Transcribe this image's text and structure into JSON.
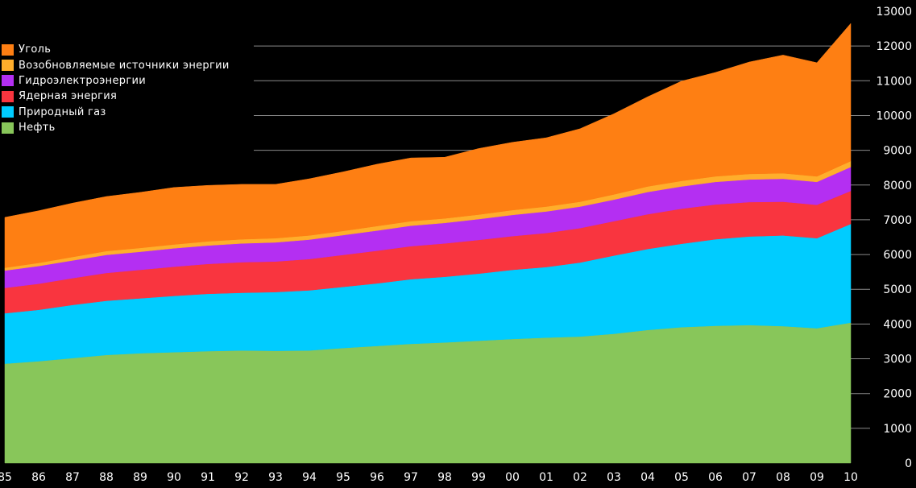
{
  "chart_data": {
    "type": "area",
    "stacked": true,
    "title": "",
    "xlabel": "",
    "ylabel": "",
    "x": [
      "85",
      "86",
      "87",
      "88",
      "89",
      "90",
      "91",
      "92",
      "93",
      "94",
      "95",
      "96",
      "97",
      "98",
      "99",
      "00",
      "01",
      "02",
      "03",
      "04",
      "05",
      "06",
      "07",
      "08",
      "09",
      "10"
    ],
    "ylim": [
      0,
      13000
    ],
    "yticks": [
      0,
      1000,
      2000,
      3000,
      4000,
      5000,
      6000,
      7000,
      8000,
      9000,
      10000,
      11000,
      12000,
      13000
    ],
    "grid": "horizontal, from 1000 to 12000",
    "legend_position": "top-left",
    "legend_order": [
      "Уголь",
      "Возобновляемые источники энергии",
      "Гидроэлектроэнергии",
      "Ядерная энергия",
      "Природный газ",
      "Нефть"
    ],
    "series": [
      {
        "name": "Нефть",
        "color": "#88c65a",
        "values": [
          2860,
          2930,
          3020,
          3110,
          3160,
          3190,
          3220,
          3240,
          3230,
          3240,
          3310,
          3370,
          3430,
          3470,
          3520,
          3570,
          3610,
          3640,
          3720,
          3830,
          3910,
          3950,
          3970,
          3940,
          3880,
          4040
        ]
      },
      {
        "name": "Природный газ",
        "color": "#00ccff",
        "values": [
          1450,
          1480,
          1530,
          1560,
          1580,
          1620,
          1650,
          1660,
          1690,
          1730,
          1760,
          1800,
          1860,
          1890,
          1930,
          1990,
          2030,
          2130,
          2250,
          2330,
          2400,
          2490,
          2550,
          2610,
          2590,
          2840
        ]
      },
      {
        "name": "Ядерная энергия",
        "color": "#f9353f",
        "values": [
          730,
          750,
          770,
          800,
          820,
          840,
          860,
          880,
          880,
          900,
          920,
          940,
          950,
          960,
          970,
          970,
          980,
          990,
          990,
          1000,
          1010,
          1000,
          990,
          970,
          960,
          950
        ]
      },
      {
        "name": "Гидроэлектроэнергии",
        "color": "#b42ff2",
        "values": [
          500,
          510,
          510,
          520,
          520,
          530,
          530,
          540,
          550,
          560,
          570,
          580,
          590,
          590,
          600,
          610,
          620,
          620,
          620,
          640,
          640,
          650,
          650,
          660,
          660,
          690
        ]
      },
      {
        "name": "Возобновляемые источники энергии",
        "color": "#ffae2b",
        "values": [
          80,
          90,
          100,
          110,
          110,
          110,
          120,
          120,
          120,
          120,
          120,
          130,
          130,
          130,
          130,
          140,
          140,
          140,
          150,
          160,
          160,
          160,
          160,
          160,
          160,
          170
        ]
      },
      {
        "name": "Уголь",
        "color": "#fe7f13",
        "values": [
          1450,
          1500,
          1550,
          1570,
          1600,
          1640,
          1610,
          1580,
          1550,
          1630,
          1700,
          1780,
          1820,
          1760,
          1900,
          1950,
          1980,
          2100,
          2320,
          2580,
          2870,
          2990,
          3220,
          3400,
          3270,
          3960
        ]
      }
    ]
  }
}
